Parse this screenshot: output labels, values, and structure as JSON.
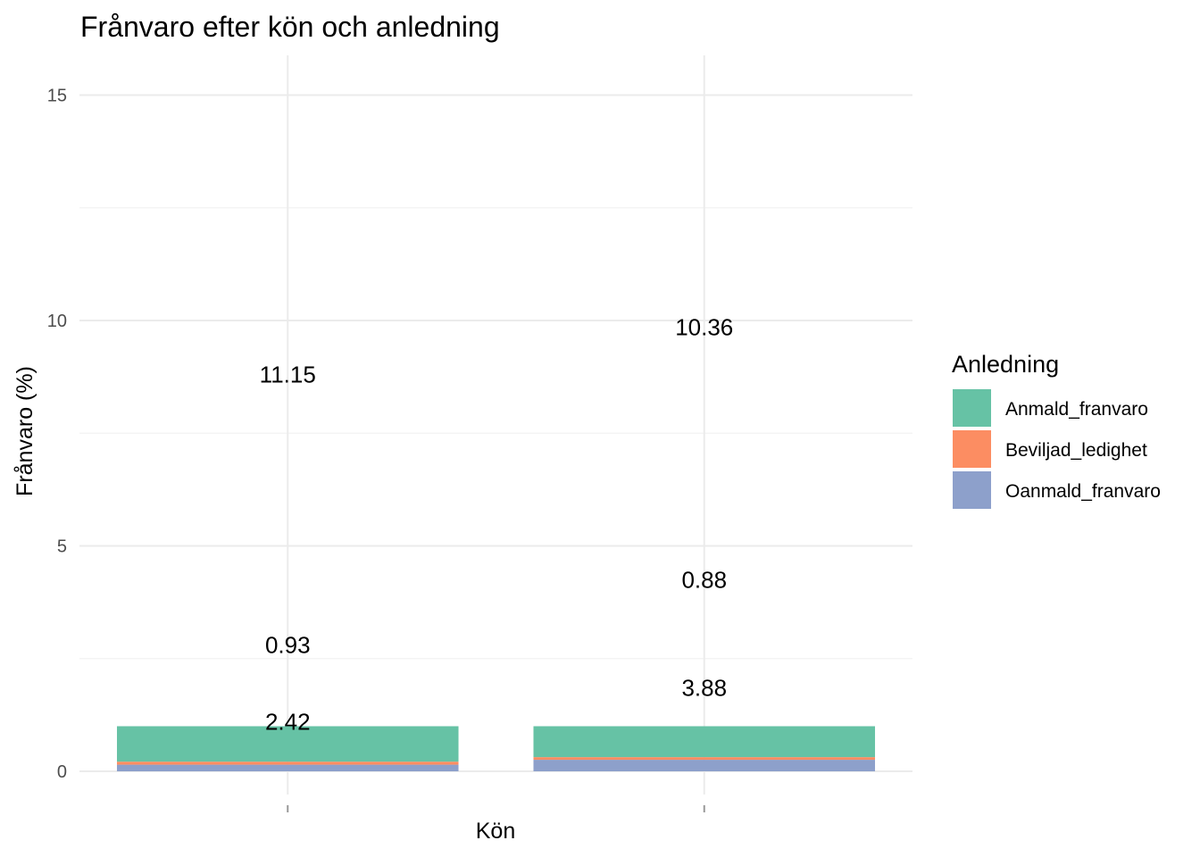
{
  "chart_data": {
    "type": "bar",
    "stacked": true,
    "title": "Frånvaro efter kön och anledning",
    "xlabel": "Kön",
    "ylabel": "Frånvaro (%)",
    "ylim": [
      -0.5,
      16
    ],
    "yticks": [
      0,
      5,
      10,
      15
    ],
    "categories": [
      "",
      ""
    ],
    "series": [
      {
        "name": "Oanmald_franvaro",
        "color": "#8da0cb",
        "values": [
          0.1471,
          0.2562
        ]
      },
      {
        "name": "Beviljad_ledighet",
        "color": "#fc8d62",
        "values": [
          0.0665,
          0.0581
        ]
      },
      {
        "name": "Anmald_franvaro",
        "color": "#66c2a5",
        "values": [
          0.7864,
          0.6857
        ]
      }
    ],
    "data_labels": [
      {
        "category_index": 0,
        "text": "11.15",
        "y": 8.8
      },
      {
        "category_index": 0,
        "text": "0.93",
        "y": 2.8
      },
      {
        "category_index": 0,
        "text": "2.42",
        "y": 1.1
      },
      {
        "category_index": 1,
        "text": "10.36",
        "y": 9.85
      },
      {
        "category_index": 1,
        "text": "0.88",
        "y": 4.25
      },
      {
        "category_index": 1,
        "text": "3.88",
        "y": 1.85
      }
    ],
    "legend": {
      "title": "Anledning",
      "placement": "right"
    },
    "grid": true
  }
}
